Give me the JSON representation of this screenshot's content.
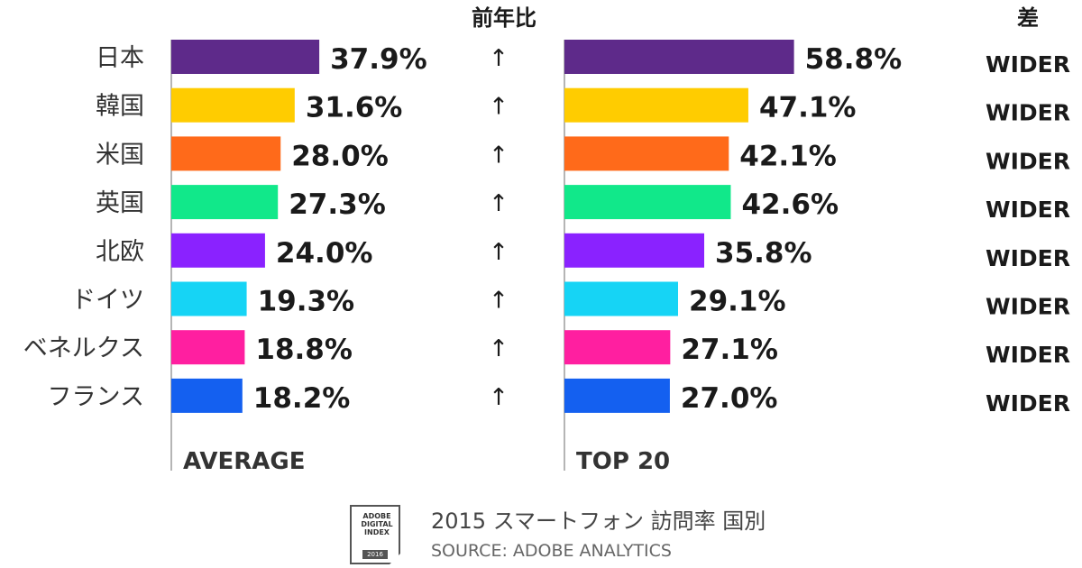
{
  "chart_data": {
    "type": "bar",
    "orientation": "horizontal",
    "categories": [
      "日本",
      "韓国",
      "米国",
      "英国",
      "北欧",
      "ドイツ",
      "ベネルクス",
      "フランス"
    ],
    "series": [
      {
        "name": "AVERAGE",
        "values": [
          37.9,
          31.6,
          28.0,
          27.3,
          24.0,
          19.3,
          18.8,
          18.2
        ],
        "labels": [
          "37.9%",
          "31.6%",
          "28.0%",
          "27.3%",
          "24.0%",
          "19.3%",
          "18.8%",
          "18.2%"
        ]
      },
      {
        "name": "TOP 20",
        "values": [
          58.8,
          47.1,
          42.1,
          42.6,
          35.8,
          29.1,
          27.1,
          27.0
        ],
        "labels": [
          "58.8%",
          "47.1%",
          "42.1%",
          "42.6%",
          "35.8%",
          "29.1%",
          "27.1%",
          "27.0%"
        ]
      }
    ],
    "bar_colors": [
      "#5e2a8a",
      "#ffcc00",
      "#ff6a1a",
      "#11e88a",
      "#8a22ff",
      "#16d4f5",
      "#ff1fa0",
      "#1460f0"
    ],
    "yoy_header": "前年比",
    "yoy_marks": [
      "↑",
      "↑",
      "↑",
      "↑",
      "↑",
      "↑",
      "↑",
      "↑"
    ],
    "diff_header": "差",
    "diff_labels": [
      "WIDER",
      "WIDER",
      "WIDER",
      "WIDER",
      "WIDER",
      "WIDER",
      "WIDER",
      "WIDER"
    ],
    "legend": "none"
  },
  "footer": {
    "logo_text": "ADOBE DIGITAL INDEX",
    "logo_year": "2016",
    "title": "2015 スマートフォン 訪問率 国別",
    "source": "SOURCE: ADOBE ANALYTICS"
  }
}
